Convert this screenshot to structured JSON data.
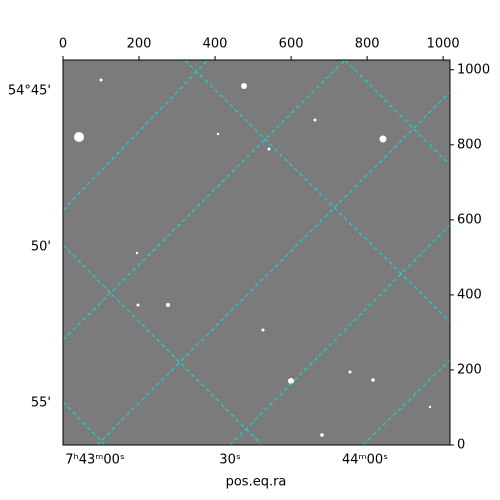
{
  "chart_data": {
    "type": "image",
    "xlabel": "pos.eq.ra",
    "xlim": [
      0,
      1018
    ],
    "ylim": [
      0,
      1026
    ],
    "xticks": [
      0,
      200,
      400,
      600,
      800,
      1000
    ],
    "yticks": [
      0,
      200,
      400,
      600,
      800,
      1000
    ],
    "ra_ticks": [
      "7ʰ43ᵐ00ˢ",
      "30ˢ",
      "44ᵐ00ˢ"
    ],
    "dec_ticks": [
      "54°45'",
      "50'",
      "55'"
    ]
  }
}
